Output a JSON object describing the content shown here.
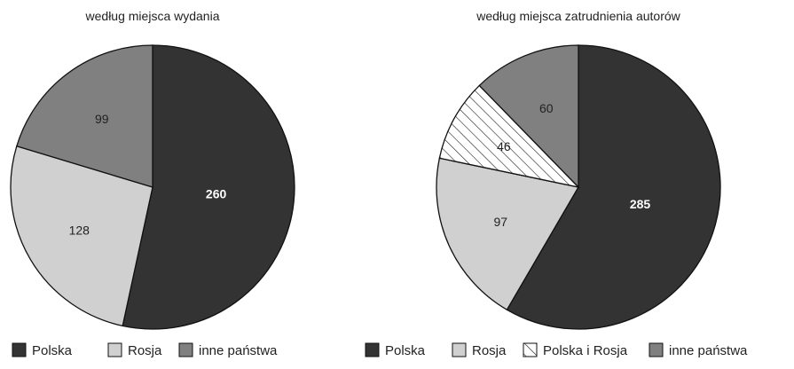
{
  "chart_data": [
    {
      "type": "pie",
      "title": "według miejsca wydania",
      "slices": [
        {
          "label": "Polska",
          "value": 260,
          "color": "#333333",
          "label_style": "light"
        },
        {
          "label": "Rosja",
          "value": 128,
          "color": "#d0d0d0",
          "label_style": "dark"
        },
        {
          "label": "inne państwa",
          "value": 99,
          "color": "#808080",
          "label_style": "dark"
        }
      ],
      "legend": [
        "Polska",
        "Rosja",
        "inne państwa"
      ],
      "legend_placement": "bottom"
    },
    {
      "type": "pie",
      "title": "według miejsca zatrudnienia autorów",
      "slices": [
        {
          "label": "Polska",
          "value": 285,
          "color": "#333333",
          "label_style": "light"
        },
        {
          "label": "Rosja",
          "value": 97,
          "color": "#d0d0d0",
          "label_style": "dark"
        },
        {
          "label": "Polska i Rosja",
          "value": 46,
          "color": "hatch",
          "label_style": "dark"
        },
        {
          "label": "inne państwa",
          "value": 60,
          "color": "#808080",
          "label_style": "dark"
        }
      ],
      "legend": [
        "Polska",
        "Rosja",
        "Polska i Rosja",
        "inne państwa"
      ],
      "legend_placement": "bottom"
    }
  ]
}
